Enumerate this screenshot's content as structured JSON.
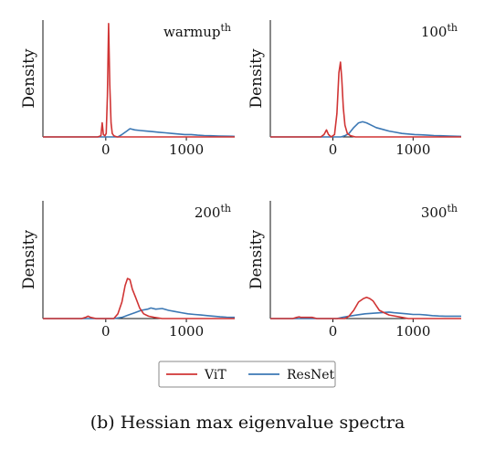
{
  "caption": "(b) Hessian max eigenvalue spectra",
  "colors": {
    "vit": "#d03434",
    "resnet": "#3c78b4",
    "axis": "#111111"
  },
  "legend": {
    "placement": "bottom-center",
    "items": [
      "ViT",
      "ResNet"
    ]
  },
  "chart_data": [
    {
      "type": "line",
      "title": "warmup",
      "title_superscript": "th",
      "xlabel": "",
      "ylabel": "Density",
      "xlim": [
        -780,
        1600
      ],
      "ylim": [
        0,
        1.0
      ],
      "xticks": [
        0,
        1000
      ],
      "xtick_labels": [
        "0",
        "1000"
      ],
      "grid": false,
      "series": [
        {
          "name": "ViT",
          "color": "#d03434",
          "points": [
            [
              -780,
              0
            ],
            [
              -100,
              0
            ],
            [
              -60,
              0.01
            ],
            [
              -45,
              0.12
            ],
            [
              -30,
              0.02
            ],
            [
              -10,
              0.01
            ],
            [
              5,
              0.03
            ],
            [
              20,
              0.35
            ],
            [
              35,
              0.97
            ],
            [
              50,
              0.45
            ],
            [
              65,
              0.12
            ],
            [
              80,
              0.03
            ],
            [
              100,
              0.01
            ],
            [
              140,
              0
            ],
            [
              1600,
              0
            ]
          ]
        },
        {
          "name": "ResNet",
          "color": "#3c78b4",
          "points": [
            [
              -780,
              0
            ],
            [
              150,
              0
            ],
            [
              200,
              0.02
            ],
            [
              260,
              0.05
            ],
            [
              300,
              0.07
            ],
            [
              360,
              0.06
            ],
            [
              430,
              0.055
            ],
            [
              500,
              0.05
            ],
            [
              580,
              0.045
            ],
            [
              660,
              0.04
            ],
            [
              740,
              0.035
            ],
            [
              820,
              0.03
            ],
            [
              900,
              0.025
            ],
            [
              980,
              0.02
            ],
            [
              1060,
              0.02
            ],
            [
              1140,
              0.015
            ],
            [
              1220,
              0.012
            ],
            [
              1300,
              0.01
            ],
            [
              1400,
              0.008
            ],
            [
              1500,
              0.006
            ],
            [
              1600,
              0.005
            ]
          ]
        }
      ]
    },
    {
      "type": "line",
      "title": "100",
      "title_superscript": "th",
      "xlabel": "",
      "ylabel": "Density",
      "xlim": [
        -780,
        1600
      ],
      "ylim": [
        0,
        1.0
      ],
      "xticks": [
        0,
        1000
      ],
      "xtick_labels": [
        "0",
        "1000"
      ],
      "grid": false,
      "series": [
        {
          "name": "ViT",
          "color": "#d03434",
          "points": [
            [
              -780,
              0
            ],
            [
              -150,
              0
            ],
            [
              -110,
              0.02
            ],
            [
              -80,
              0.06
            ],
            [
              -55,
              0.02
            ],
            [
              -20,
              0
            ],
            [
              20,
              0.02
            ],
            [
              50,
              0.2
            ],
            [
              75,
              0.55
            ],
            [
              95,
              0.64
            ],
            [
              110,
              0.5
            ],
            [
              130,
              0.25
            ],
            [
              150,
              0.1
            ],
            [
              180,
              0.03
            ],
            [
              220,
              0.01
            ],
            [
              280,
              0
            ],
            [
              1600,
              0
            ]
          ]
        },
        {
          "name": "ResNet",
          "color": "#3c78b4",
          "points": [
            [
              -780,
              0
            ],
            [
              100,
              0
            ],
            [
              150,
              0.01
            ],
            [
              200,
              0.03
            ],
            [
              260,
              0.08
            ],
            [
              320,
              0.12
            ],
            [
              370,
              0.13
            ],
            [
              420,
              0.12
            ],
            [
              480,
              0.1
            ],
            [
              540,
              0.08
            ],
            [
              620,
              0.065
            ],
            [
              700,
              0.05
            ],
            [
              780,
              0.04
            ],
            [
              860,
              0.03
            ],
            [
              940,
              0.025
            ],
            [
              1020,
              0.02
            ],
            [
              1100,
              0.018
            ],
            [
              1180,
              0.015
            ],
            [
              1260,
              0.012
            ],
            [
              1340,
              0.01
            ],
            [
              1450,
              0.008
            ],
            [
              1600,
              0.005
            ]
          ]
        }
      ]
    },
    {
      "type": "line",
      "title": "200",
      "title_superscript": "th",
      "xlabel": "",
      "ylabel": "Density",
      "xlim": [
        -780,
        1600
      ],
      "ylim": [
        0,
        1.0
      ],
      "xticks": [
        0,
        1000
      ],
      "xtick_labels": [
        "0",
        "1000"
      ],
      "grid": false,
      "series": [
        {
          "name": "ViT",
          "color": "#d03434",
          "points": [
            [
              -780,
              0
            ],
            [
              -300,
              0
            ],
            [
              -250,
              0.01
            ],
            [
              -220,
              0.02
            ],
            [
              -190,
              0.01
            ],
            [
              -120,
              0
            ],
            [
              100,
              0
            ],
            [
              150,
              0.04
            ],
            [
              200,
              0.14
            ],
            [
              240,
              0.28
            ],
            [
              270,
              0.34
            ],
            [
              300,
              0.33
            ],
            [
              330,
              0.25
            ],
            [
              370,
              0.18
            ],
            [
              420,
              0.09
            ],
            [
              470,
              0.04
            ],
            [
              530,
              0.02
            ],
            [
              600,
              0.01
            ],
            [
              700,
              0
            ],
            [
              1600,
              0
            ]
          ]
        },
        {
          "name": "ResNet",
          "color": "#3c78b4",
          "points": [
            [
              -780,
              0
            ],
            [
              100,
              0
            ],
            [
              200,
              0.01
            ],
            [
              280,
              0.03
            ],
            [
              360,
              0.05
            ],
            [
              440,
              0.07
            ],
            [
              520,
              0.08
            ],
            [
              560,
              0.09
            ],
            [
              620,
              0.08
            ],
            [
              700,
              0.085
            ],
            [
              780,
              0.07
            ],
            [
              860,
              0.06
            ],
            [
              940,
              0.05
            ],
            [
              1020,
              0.04
            ],
            [
              1100,
              0.035
            ],
            [
              1180,
              0.03
            ],
            [
              1260,
              0.025
            ],
            [
              1340,
              0.02
            ],
            [
              1420,
              0.015
            ],
            [
              1500,
              0.012
            ],
            [
              1600,
              0.01
            ]
          ]
        }
      ]
    },
    {
      "type": "line",
      "title": "300",
      "title_superscript": "th",
      "xlabel": "",
      "ylabel": "Density",
      "xlim": [
        -780,
        1600
      ],
      "ylim": [
        0,
        1.0
      ],
      "xticks": [
        0,
        1000
      ],
      "xtick_labels": [
        "0",
        "1000"
      ],
      "grid": false,
      "series": [
        {
          "name": "ViT",
          "color": "#d03434",
          "points": [
            [
              -780,
              0
            ],
            [
              -500,
              0
            ],
            [
              -450,
              0.01
            ],
            [
              -420,
              0.015
            ],
            [
              -400,
              0.01
            ],
            [
              -320,
              0.01
            ],
            [
              -260,
              0.01
            ],
            [
              -200,
              0
            ],
            [
              150,
              0
            ],
            [
              200,
              0.02
            ],
            [
              260,
              0.07
            ],
            [
              320,
              0.14
            ],
            [
              380,
              0.17
            ],
            [
              420,
              0.18
            ],
            [
              460,
              0.17
            ],
            [
              500,
              0.15
            ],
            [
              540,
              0.11
            ],
            [
              580,
              0.07
            ],
            [
              640,
              0.05
            ],
            [
              700,
              0.03
            ],
            [
              780,
              0.02
            ],
            [
              860,
              0.01
            ],
            [
              940,
              0
            ],
            [
              1600,
              0
            ]
          ]
        },
        {
          "name": "ResNet",
          "color": "#3c78b4",
          "points": [
            [
              -780,
              0
            ],
            [
              50,
              0
            ],
            [
              120,
              0.01
            ],
            [
              200,
              0.02
            ],
            [
              300,
              0.03
            ],
            [
              400,
              0.04
            ],
            [
              500,
              0.045
            ],
            [
              600,
              0.05
            ],
            [
              700,
              0.055
            ],
            [
              760,
              0.05
            ],
            [
              840,
              0.045
            ],
            [
              920,
              0.04
            ],
            [
              1000,
              0.035
            ],
            [
              1080,
              0.035
            ],
            [
              1160,
              0.03
            ],
            [
              1240,
              0.025
            ],
            [
              1320,
              0.022
            ],
            [
              1400,
              0.02
            ],
            [
              1500,
              0.02
            ],
            [
              1600,
              0.02
            ]
          ]
        }
      ]
    }
  ]
}
